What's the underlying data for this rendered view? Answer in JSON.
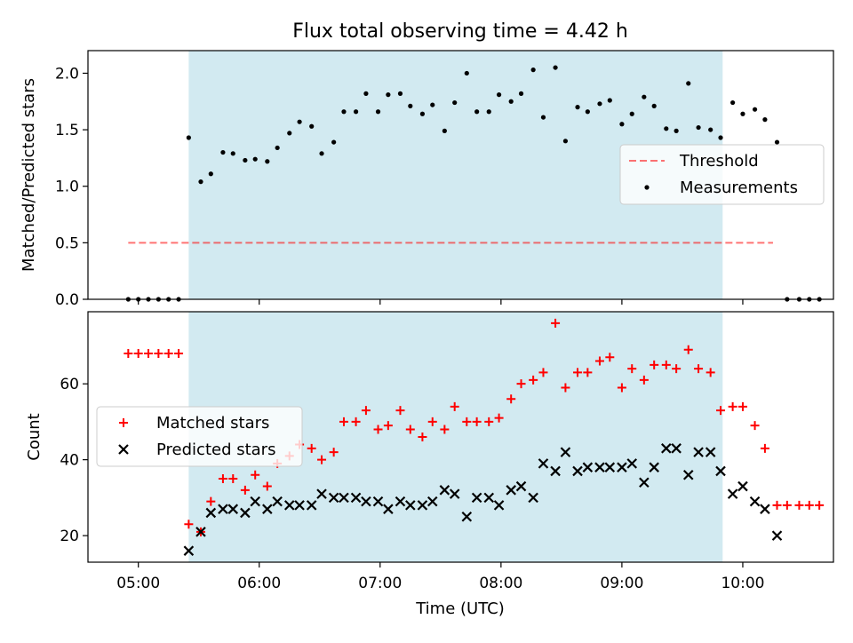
{
  "chart_data": {
    "title": "Flux total observing time = 4.42 h",
    "xlabel": "Time (UTC)",
    "x_ticks": [
      "05:00",
      "06:00",
      "07:00",
      "08:00",
      "09:00",
      "10:00"
    ],
    "shaded_interval": [
      "05:25",
      "09:50"
    ],
    "colors": {
      "shade": "#add8e6",
      "threshold": "#ff0000",
      "measurements": "#000000",
      "matched": "#ff0000",
      "predicted": "#000000"
    },
    "panels": [
      {
        "type": "scatter",
        "ylabel": "Matched/Predicted stars",
        "ylim": [
          0,
          2.2
        ],
        "yticks": [
          "0.0",
          "0.5",
          "1.0",
          "1.5",
          "2.0"
        ],
        "legend_position": "right",
        "threshold": {
          "name": "Threshold",
          "value": 0.5,
          "x_range": [
            "04:55",
            "10:15"
          ]
        },
        "series": [
          {
            "name": "Measurements",
            "points": [
              [
                "04:55",
                0.0
              ],
              [
                "05:00",
                0.0
              ],
              [
                "05:05",
                0.0
              ],
              [
                "05:10",
                0.0
              ],
              [
                "05:15",
                0.0
              ],
              [
                "05:20",
                0.0
              ],
              [
                "05:25",
                1.43
              ],
              [
                "05:31",
                1.04
              ],
              [
                "05:36",
                1.11
              ],
              [
                "05:42",
                1.3
              ],
              [
                "05:47",
                1.29
              ],
              [
                "05:53",
                1.23
              ],
              [
                "05:58",
                1.24
              ],
              [
                "06:04",
                1.22
              ],
              [
                "06:09",
                1.34
              ],
              [
                "06:15",
                1.47
              ],
              [
                "06:20",
                1.57
              ],
              [
                "06:26",
                1.53
              ],
              [
                "06:31",
                1.29
              ],
              [
                "06:37",
                1.39
              ],
              [
                "06:42",
                1.66
              ],
              [
                "06:48",
                1.66
              ],
              [
                "06:53",
                1.82
              ],
              [
                "06:59",
                1.66
              ],
              [
                "07:04",
                1.81
              ],
              [
                "07:10",
                1.82
              ],
              [
                "07:15",
                1.71
              ],
              [
                "07:21",
                1.64
              ],
              [
                "07:26",
                1.72
              ],
              [
                "07:32",
                1.49
              ],
              [
                "07:37",
                1.74
              ],
              [
                "07:43",
                2.0
              ],
              [
                "07:48",
                1.66
              ],
              [
                "07:54",
                1.66
              ],
              [
                "07:59",
                1.81
              ],
              [
                "08:05",
                1.75
              ],
              [
                "08:10",
                1.82
              ],
              [
                "08:16",
                2.03
              ],
              [
                "08:21",
                1.61
              ],
              [
                "08:27",
                2.05
              ],
              [
                "08:32",
                1.4
              ],
              [
                "08:38",
                1.7
              ],
              [
                "08:43",
                1.66
              ],
              [
                "08:49",
                1.73
              ],
              [
                "08:54",
                1.76
              ],
              [
                "09:00",
                1.55
              ],
              [
                "09:05",
                1.64
              ],
              [
                "09:11",
                1.79
              ],
              [
                "09:16",
                1.71
              ],
              [
                "09:22",
                1.51
              ],
              [
                "09:27",
                1.49
              ],
              [
                "09:33",
                1.91
              ],
              [
                "09:38",
                1.52
              ],
              [
                "09:44",
                1.5
              ],
              [
                "09:49",
                1.43
              ],
              [
                "09:55",
                1.74
              ],
              [
                "10:00",
                1.64
              ],
              [
                "10:06",
                1.68
              ],
              [
                "10:11",
                1.59
              ],
              [
                "10:17",
                1.39
              ],
              [
                "10:22",
                0.0
              ],
              [
                "10:28",
                0.0
              ],
              [
                "10:33",
                0.0
              ],
              [
                "10:38",
                0.0
              ]
            ]
          }
        ]
      },
      {
        "type": "scatter",
        "ylabel": "Count",
        "ylim": [
          13,
          79
        ],
        "yticks": [
          "20",
          "40",
          "60"
        ],
        "legend_position": "center-left",
        "series": [
          {
            "name": "Matched stars",
            "points": [
              [
                "04:55",
                68
              ],
              [
                "05:00",
                68
              ],
              [
                "05:05",
                68
              ],
              [
                "05:10",
                68
              ],
              [
                "05:15",
                68
              ],
              [
                "05:20",
                68
              ],
              [
                "05:25",
                23
              ],
              [
                "05:31",
                21
              ],
              [
                "05:36",
                29
              ],
              [
                "05:42",
                35
              ],
              [
                "05:47",
                35
              ],
              [
                "05:53",
                32
              ],
              [
                "05:58",
                36
              ],
              [
                "06:04",
                33
              ],
              [
                "06:09",
                39
              ],
              [
                "06:15",
                41
              ],
              [
                "06:20",
                44
              ],
              [
                "06:26",
                43
              ],
              [
                "06:31",
                40
              ],
              [
                "06:37",
                42
              ],
              [
                "06:42",
                50
              ],
              [
                "06:48",
                50
              ],
              [
                "06:53",
                53
              ],
              [
                "06:59",
                48
              ],
              [
                "07:04",
                49
              ],
              [
                "07:10",
                53
              ],
              [
                "07:15",
                48
              ],
              [
                "07:21",
                46
              ],
              [
                "07:26",
                50
              ],
              [
                "07:32",
                48
              ],
              [
                "07:37",
                54
              ],
              [
                "07:43",
                50
              ],
              [
                "07:48",
                50
              ],
              [
                "07:54",
                50
              ],
              [
                "07:59",
                51
              ],
              [
                "08:05",
                56
              ],
              [
                "08:10",
                60
              ],
              [
                "08:16",
                61
              ],
              [
                "08:21",
                63
              ],
              [
                "08:27",
                76
              ],
              [
                "08:32",
                59
              ],
              [
                "08:38",
                63
              ],
              [
                "08:43",
                63
              ],
              [
                "08:49",
                66
              ],
              [
                "08:54",
                67
              ],
              [
                "09:00",
                59
              ],
              [
                "09:05",
                64
              ],
              [
                "09:11",
                61
              ],
              [
                "09:16",
                65
              ],
              [
                "09:22",
                65
              ],
              [
                "09:27",
                64
              ],
              [
                "09:33",
                69
              ],
              [
                "09:38",
                64
              ],
              [
                "09:44",
                63
              ],
              [
                "09:49",
                53
              ],
              [
                "09:55",
                54
              ],
              [
                "10:00",
                54
              ],
              [
                "10:06",
                49
              ],
              [
                "10:11",
                43
              ],
              [
                "10:17",
                28
              ],
              [
                "10:22",
                28
              ],
              [
                "10:28",
                28
              ],
              [
                "10:33",
                28
              ],
              [
                "10:38",
                28
              ]
            ]
          },
          {
            "name": "Predicted stars",
            "points": [
              [
                "05:25",
                16
              ],
              [
                "05:31",
                21
              ],
              [
                "05:36",
                26
              ],
              [
                "05:42",
                27
              ],
              [
                "05:47",
                27
              ],
              [
                "05:53",
                26
              ],
              [
                "05:58",
                29
              ],
              [
                "06:04",
                27
              ],
              [
                "06:09",
                29
              ],
              [
                "06:15",
                28
              ],
              [
                "06:20",
                28
              ],
              [
                "06:26",
                28
              ],
              [
                "06:31",
                31
              ],
              [
                "06:37",
                30
              ],
              [
                "06:42",
                30
              ],
              [
                "06:48",
                30
              ],
              [
                "06:53",
                29
              ],
              [
                "06:59",
                29
              ],
              [
                "07:04",
                27
              ],
              [
                "07:10",
                29
              ],
              [
                "07:15",
                28
              ],
              [
                "07:21",
                28
              ],
              [
                "07:26",
                29
              ],
              [
                "07:32",
                32
              ],
              [
                "07:37",
                31
              ],
              [
                "07:43",
                25
              ],
              [
                "07:48",
                30
              ],
              [
                "07:54",
                30
              ],
              [
                "07:59",
                28
              ],
              [
                "08:05",
                32
              ],
              [
                "08:10",
                33
              ],
              [
                "08:16",
                30
              ],
              [
                "08:21",
                39
              ],
              [
                "08:27",
                37
              ],
              [
                "08:32",
                42
              ],
              [
                "08:38",
                37
              ],
              [
                "08:43",
                38
              ],
              [
                "08:49",
                38
              ],
              [
                "08:54",
                38
              ],
              [
                "09:00",
                38
              ],
              [
                "09:05",
                39
              ],
              [
                "09:11",
                34
              ],
              [
                "09:16",
                38
              ],
              [
                "09:22",
                43
              ],
              [
                "09:27",
                43
              ],
              [
                "09:33",
                36
              ],
              [
                "09:38",
                42
              ],
              [
                "09:44",
                42
              ],
              [
                "09:49",
                37
              ],
              [
                "09:55",
                31
              ],
              [
                "10:00",
                33
              ],
              [
                "10:06",
                29
              ],
              [
                "10:11",
                27
              ],
              [
                "10:17",
                20
              ]
            ]
          }
        ]
      }
    ]
  }
}
